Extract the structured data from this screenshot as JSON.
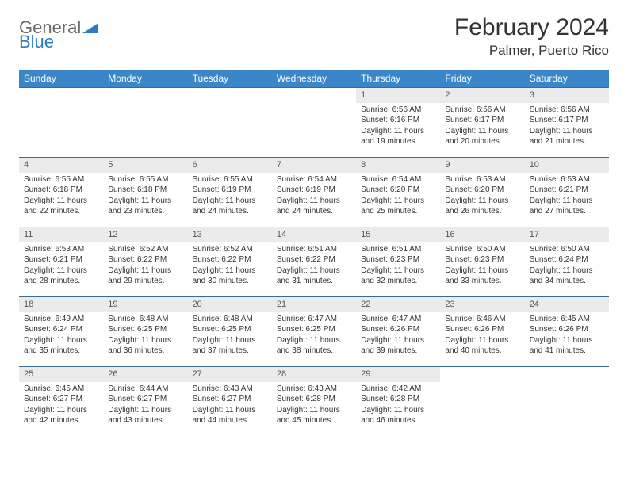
{
  "colors": {
    "header_bg": "#3a86c8",
    "header_text": "#ffffff",
    "daynum_bg": "#ebebeb",
    "cell_border": "#3a6a94",
    "body_text": "#333333",
    "logo_gray": "#6a6a6a",
    "logo_blue": "#2f7bbf"
  },
  "logo": {
    "word1": "General",
    "word2": "Blue"
  },
  "title": "February 2024",
  "location": "Palmer, Puerto Rico",
  "day_headers": [
    "Sunday",
    "Monday",
    "Tuesday",
    "Wednesday",
    "Thursday",
    "Friday",
    "Saturday"
  ],
  "weeks": [
    [
      null,
      null,
      null,
      null,
      {
        "n": "1",
        "sr": "6:56 AM",
        "ss": "6:16 PM",
        "dl": "11 hours and 19 minutes."
      },
      {
        "n": "2",
        "sr": "6:56 AM",
        "ss": "6:17 PM",
        "dl": "11 hours and 20 minutes."
      },
      {
        "n": "3",
        "sr": "6:56 AM",
        "ss": "6:17 PM",
        "dl": "11 hours and 21 minutes."
      }
    ],
    [
      {
        "n": "4",
        "sr": "6:55 AM",
        "ss": "6:18 PM",
        "dl": "11 hours and 22 minutes."
      },
      {
        "n": "5",
        "sr": "6:55 AM",
        "ss": "6:18 PM",
        "dl": "11 hours and 23 minutes."
      },
      {
        "n": "6",
        "sr": "6:55 AM",
        "ss": "6:19 PM",
        "dl": "11 hours and 24 minutes."
      },
      {
        "n": "7",
        "sr": "6:54 AM",
        "ss": "6:19 PM",
        "dl": "11 hours and 24 minutes."
      },
      {
        "n": "8",
        "sr": "6:54 AM",
        "ss": "6:20 PM",
        "dl": "11 hours and 25 minutes."
      },
      {
        "n": "9",
        "sr": "6:53 AM",
        "ss": "6:20 PM",
        "dl": "11 hours and 26 minutes."
      },
      {
        "n": "10",
        "sr": "6:53 AM",
        "ss": "6:21 PM",
        "dl": "11 hours and 27 minutes."
      }
    ],
    [
      {
        "n": "11",
        "sr": "6:53 AM",
        "ss": "6:21 PM",
        "dl": "11 hours and 28 minutes."
      },
      {
        "n": "12",
        "sr": "6:52 AM",
        "ss": "6:22 PM",
        "dl": "11 hours and 29 minutes."
      },
      {
        "n": "13",
        "sr": "6:52 AM",
        "ss": "6:22 PM",
        "dl": "11 hours and 30 minutes."
      },
      {
        "n": "14",
        "sr": "6:51 AM",
        "ss": "6:22 PM",
        "dl": "11 hours and 31 minutes."
      },
      {
        "n": "15",
        "sr": "6:51 AM",
        "ss": "6:23 PM",
        "dl": "11 hours and 32 minutes."
      },
      {
        "n": "16",
        "sr": "6:50 AM",
        "ss": "6:23 PM",
        "dl": "11 hours and 33 minutes."
      },
      {
        "n": "17",
        "sr": "6:50 AM",
        "ss": "6:24 PM",
        "dl": "11 hours and 34 minutes."
      }
    ],
    [
      {
        "n": "18",
        "sr": "6:49 AM",
        "ss": "6:24 PM",
        "dl": "11 hours and 35 minutes."
      },
      {
        "n": "19",
        "sr": "6:48 AM",
        "ss": "6:25 PM",
        "dl": "11 hours and 36 minutes."
      },
      {
        "n": "20",
        "sr": "6:48 AM",
        "ss": "6:25 PM",
        "dl": "11 hours and 37 minutes."
      },
      {
        "n": "21",
        "sr": "6:47 AM",
        "ss": "6:25 PM",
        "dl": "11 hours and 38 minutes."
      },
      {
        "n": "22",
        "sr": "6:47 AM",
        "ss": "6:26 PM",
        "dl": "11 hours and 39 minutes."
      },
      {
        "n": "23",
        "sr": "6:46 AM",
        "ss": "6:26 PM",
        "dl": "11 hours and 40 minutes."
      },
      {
        "n": "24",
        "sr": "6:45 AM",
        "ss": "6:26 PM",
        "dl": "11 hours and 41 minutes."
      }
    ],
    [
      {
        "n": "25",
        "sr": "6:45 AM",
        "ss": "6:27 PM",
        "dl": "11 hours and 42 minutes."
      },
      {
        "n": "26",
        "sr": "6:44 AM",
        "ss": "6:27 PM",
        "dl": "11 hours and 43 minutes."
      },
      {
        "n": "27",
        "sr": "6:43 AM",
        "ss": "6:27 PM",
        "dl": "11 hours and 44 minutes."
      },
      {
        "n": "28",
        "sr": "6:43 AM",
        "ss": "6:28 PM",
        "dl": "11 hours and 45 minutes."
      },
      {
        "n": "29",
        "sr": "6:42 AM",
        "ss": "6:28 PM",
        "dl": "11 hours and 46 minutes."
      },
      null,
      null
    ]
  ],
  "labels": {
    "sunrise": "Sunrise: ",
    "sunset": "Sunset: ",
    "daylight": "Daylight: "
  }
}
